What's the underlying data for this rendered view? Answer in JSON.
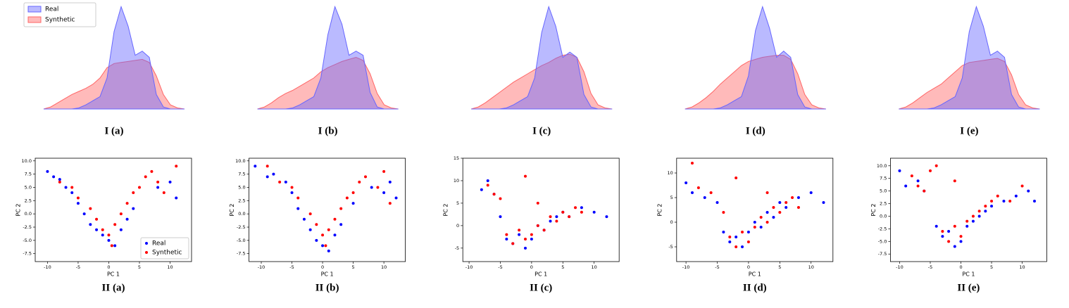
{
  "chart_data": [
    {
      "type": "kde",
      "caption": "I (a)",
      "legend": "upper left",
      "x": [
        0,
        1,
        2,
        3,
        4,
        5,
        6,
        7,
        8,
        9,
        10,
        11,
        12,
        13,
        14,
        15,
        16,
        17,
        18,
        19,
        20
      ],
      "xlim": [
        0,
        20
      ],
      "ylim": [
        0,
        1
      ],
      "series": [
        {
          "name": "Real",
          "color": "#6666ff",
          "values": [
            0,
            0,
            0,
            0,
            0,
            0.01,
            0.04,
            0.08,
            0.12,
            0.3,
            0.75,
            0.99,
            0.8,
            0.52,
            0.56,
            0.5,
            0.14,
            0.02,
            0,
            0,
            0
          ]
        },
        {
          "name": "Synthetic",
          "color": "#ff6666",
          "values": [
            0,
            0.02,
            0.06,
            0.1,
            0.14,
            0.17,
            0.2,
            0.24,
            0.3,
            0.4,
            0.44,
            0.45,
            0.46,
            0.47,
            0.48,
            0.45,
            0.32,
            0.14,
            0.04,
            0.01,
            0
          ]
        }
      ]
    },
    {
      "type": "kde",
      "caption": "I (b)",
      "x": [
        0,
        1,
        2,
        3,
        4,
        5,
        6,
        7,
        8,
        9,
        10,
        11,
        12,
        13,
        14,
        15,
        16,
        17,
        18,
        19,
        20
      ],
      "xlim": [
        0,
        20
      ],
      "ylim": [
        0,
        1
      ],
      "series": [
        {
          "color": "#6666ff",
          "values": [
            0,
            0,
            0,
            0,
            0,
            0.01,
            0.04,
            0.08,
            0.12,
            0.3,
            0.72,
            0.99,
            0.82,
            0.52,
            0.56,
            0.52,
            0.16,
            0.02,
            0,
            0,
            0
          ]
        },
        {
          "color": "#ff6666",
          "values": [
            0,
            0.02,
            0.06,
            0.11,
            0.15,
            0.18,
            0.22,
            0.26,
            0.3,
            0.36,
            0.4,
            0.43,
            0.46,
            0.48,
            0.5,
            0.47,
            0.34,
            0.15,
            0.04,
            0.01,
            0
          ]
        }
      ]
    },
    {
      "type": "kde",
      "caption": "I (c)",
      "x": [
        0,
        1,
        2,
        3,
        4,
        5,
        6,
        7,
        8,
        9,
        10,
        11,
        12,
        13,
        14,
        15,
        16,
        17,
        18,
        19,
        20
      ],
      "xlim": [
        0,
        20
      ],
      "ylim": [
        0,
        1
      ],
      "series": [
        {
          "color": "#6666ff",
          "values": [
            0,
            0,
            0,
            0,
            0,
            0.01,
            0.04,
            0.08,
            0.12,
            0.3,
            0.74,
            0.99,
            0.8,
            0.5,
            0.55,
            0.5,
            0.14,
            0.02,
            0,
            0,
            0
          ]
        },
        {
          "color": "#ff6666",
          "values": [
            0,
            0.02,
            0.06,
            0.11,
            0.16,
            0.21,
            0.26,
            0.3,
            0.34,
            0.38,
            0.42,
            0.45,
            0.49,
            0.52,
            0.53,
            0.5,
            0.36,
            0.15,
            0.04,
            0.01,
            0
          ]
        }
      ]
    },
    {
      "type": "kde",
      "caption": "I (d)",
      "x": [
        0,
        1,
        2,
        3,
        4,
        5,
        6,
        7,
        8,
        9,
        10,
        11,
        12,
        13,
        14,
        15,
        16,
        17,
        18,
        19,
        20
      ],
      "xlim": [
        0,
        20
      ],
      "ylim": [
        0,
        1
      ],
      "series": [
        {
          "color": "#6666ff",
          "values": [
            0,
            0,
            0,
            0,
            0,
            0.01,
            0.04,
            0.08,
            0.12,
            0.32,
            0.76,
            0.99,
            0.78,
            0.5,
            0.56,
            0.5,
            0.14,
            0.02,
            0,
            0,
            0
          ]
        },
        {
          "color": "#ff6666",
          "values": [
            0,
            0.02,
            0.06,
            0.11,
            0.17,
            0.24,
            0.3,
            0.36,
            0.42,
            0.46,
            0.48,
            0.5,
            0.51,
            0.52,
            0.52,
            0.48,
            0.34,
            0.14,
            0.04,
            0.01,
            0
          ]
        }
      ]
    },
    {
      "type": "kde",
      "caption": "I (e)",
      "x": [
        0,
        1,
        2,
        3,
        4,
        5,
        6,
        7,
        8,
        9,
        10,
        11,
        12,
        13,
        14,
        15,
        16,
        17,
        18,
        19,
        20
      ],
      "xlim": [
        0,
        20
      ],
      "ylim": [
        0,
        1
      ],
      "series": [
        {
          "color": "#6666ff",
          "values": [
            0,
            0,
            0,
            0,
            0,
            0.01,
            0.04,
            0.08,
            0.12,
            0.3,
            0.75,
            0.99,
            0.8,
            0.52,
            0.56,
            0.5,
            0.14,
            0.02,
            0,
            0,
            0
          ]
        },
        {
          "color": "#ff6666",
          "values": [
            0,
            0.02,
            0.06,
            0.11,
            0.16,
            0.2,
            0.24,
            0.3,
            0.36,
            0.42,
            0.45,
            0.46,
            0.47,
            0.48,
            0.49,
            0.46,
            0.33,
            0.14,
            0.04,
            0.01,
            0
          ]
        }
      ]
    },
    {
      "type": "scatter",
      "caption": "II (a)",
      "xlabel": "PC 1",
      "ylabel": "PC 2",
      "legend": "lower right",
      "xlim": [
        -12,
        13.5
      ],
      "ylim": [
        -9,
        10.5
      ],
      "xticks": [
        -10,
        -5,
        0,
        5,
        10
      ],
      "yticks": [
        {
          "value": -7.5,
          "label": "-7.5"
        },
        {
          "value": -5,
          "label": "-5.0"
        },
        {
          "value": -2.5,
          "label": "-2.5"
        },
        {
          "value": 0,
          "label": "0.0"
        },
        {
          "value": 2.5,
          "label": "2.5"
        },
        {
          "value": 5,
          "label": "5.0"
        },
        {
          "value": 7.5,
          "label": "7.5"
        },
        {
          "value": 10,
          "label": "10.0"
        }
      ],
      "series": [
        {
          "name": "Real",
          "color": "#0000ff",
          "x": [
            -10,
            -9,
            -8,
            -7,
            -6,
            -5,
            -4,
            -3,
            -2,
            -1,
            0,
            1,
            2,
            3,
            4,
            8,
            10,
            11
          ],
          "y": [
            8,
            7,
            6.5,
            5,
            4,
            2,
            0,
            -2,
            -3,
            -4,
            -5,
            -6,
            -3,
            -1,
            1,
            5,
            6,
            3
          ]
        },
        {
          "name": "Synthetic",
          "color": "#ff0000",
          "x": [
            -8,
            -6,
            -5,
            -3,
            -2,
            -1,
            0,
            0.5,
            1,
            2,
            3,
            4,
            5,
            6,
            7,
            8,
            9,
            11
          ],
          "y": [
            6,
            5,
            3,
            1,
            -1,
            -3,
            -4,
            -6,
            -2,
            0,
            2,
            4,
            5,
            7,
            8,
            6,
            4,
            9
          ]
        }
      ]
    },
    {
      "type": "scatter",
      "caption": "II (b)",
      "xlabel": "PC 1",
      "ylabel": "PC 2",
      "xlim": [
        -12,
        13.5
      ],
      "ylim": [
        -9,
        10.5
      ],
      "xticks": [
        -10,
        -5,
        0,
        5,
        10
      ],
      "yticks": [
        {
          "value": -7.5,
          "label": "-7.5"
        },
        {
          "value": -5,
          "label": "-5.0"
        },
        {
          "value": -2.5,
          "label": "-2.5"
        },
        {
          "value": 0,
          "label": "0.0"
        },
        {
          "value": 2.5,
          "label": "2.5"
        },
        {
          "value": 5,
          "label": "5.0"
        },
        {
          "value": 7.5,
          "label": "7.5"
        },
        {
          "value": 10,
          "label": "10.0"
        }
      ],
      "series": [
        {
          "color": "#0000ff",
          "x": [
            -11,
            -9,
            -8,
            -6,
            -5,
            -4,
            -3,
            -2,
            -1,
            0,
            1,
            2,
            3,
            5,
            8,
            10,
            11,
            12
          ],
          "y": [
            9,
            7,
            7.5,
            6,
            4,
            1,
            -1,
            -3,
            -5,
            -6,
            -7,
            -4,
            -2,
            2,
            5,
            4,
            6,
            3
          ]
        },
        {
          "color": "#ff0000",
          "x": [
            -9,
            -7,
            -5,
            -4,
            -2,
            -1,
            0,
            0.5,
            1,
            2,
            3,
            4,
            5,
            6,
            7,
            9,
            10,
            11
          ],
          "y": [
            9,
            6,
            5,
            3,
            0,
            -2,
            -4,
            -6,
            -3,
            -1,
            1,
            3,
            4,
            6,
            7,
            5,
            8,
            2
          ]
        }
      ]
    },
    {
      "type": "scatter",
      "caption": "II (c)",
      "xlabel": "PC 1",
      "ylabel": "PC 2",
      "xlim": [
        -11,
        14
      ],
      "ylim": [
        -8,
        15
      ],
      "xticks": [
        -10,
        -5,
        0,
        5,
        10
      ],
      "yticks": [
        -5,
        0,
        5,
        10,
        15
      ],
      "series": [
        {
          "color": "#0000ff",
          "x": [
            -8,
            -7,
            -6,
            -5,
            -4,
            -3,
            -2,
            -1,
            0,
            1,
            2,
            3,
            4,
            5,
            6,
            8,
            10,
            12
          ],
          "y": [
            8,
            10,
            7,
            2,
            -3,
            -4,
            -2,
            -5,
            -3,
            0,
            -1,
            1,
            2,
            3,
            2,
            4,
            3,
            2
          ]
        },
        {
          "color": "#ff0000",
          "x": [
            -7,
            -6,
            -5,
            -4,
            -3,
            -2,
            -1,
            0,
            1,
            2,
            3,
            4,
            5,
            6,
            7,
            8,
            -1,
            1
          ],
          "y": [
            9,
            7,
            6,
            -2,
            -4,
            -1,
            -3,
            -2,
            0,
            -1,
            2,
            1,
            3,
            2,
            4,
            3,
            11,
            5
          ]
        }
      ]
    },
    {
      "type": "scatter",
      "caption": "II (d)",
      "xlabel": "PC 1",
      "ylabel": "PC 2",
      "xlim": [
        -11.5,
        13.5
      ],
      "ylim": [
        -8,
        13
      ],
      "xticks": [
        -10,
        -5,
        0,
        5,
        10
      ],
      "yticks": [
        -5,
        0,
        5,
        10
      ],
      "series": [
        {
          "color": "#0000ff",
          "x": [
            -10,
            -9,
            -7,
            -5,
            -4,
            -3,
            -2,
            -1,
            0,
            1,
            2,
            3,
            4,
            5,
            6,
            8,
            10,
            12
          ],
          "y": [
            8,
            6,
            5,
            4,
            -2,
            -4,
            -3,
            -5,
            -2,
            0,
            -1,
            2,
            1,
            4,
            3,
            5,
            6,
            4
          ]
        },
        {
          "color": "#ff0000",
          "x": [
            -9,
            -8,
            -6,
            -4,
            -3,
            -2,
            -1,
            0,
            1,
            2,
            3,
            4,
            5,
            6,
            7,
            8,
            -2,
            3
          ],
          "y": [
            12,
            7,
            6,
            2,
            -3,
            -5,
            -2,
            -4,
            -1,
            1,
            0,
            3,
            2,
            4,
            5,
            3,
            9,
            6
          ]
        }
      ]
    },
    {
      "type": "scatter",
      "caption": "II (e)",
      "xlabel": "PC 1",
      "ylabel": "PC 2",
      "xlim": [
        -11.5,
        14
      ],
      "ylim": [
        -9,
        11.5
      ],
      "xticks": [
        -10,
        -5,
        0,
        5,
        10
      ],
      "yticks": [
        {
          "value": -7.5,
          "label": "-7.5"
        },
        {
          "value": -5,
          "label": "-5.0"
        },
        {
          "value": -2.5,
          "label": "-2.5"
        },
        {
          "value": 0,
          "label": "0.0"
        },
        {
          "value": 2.5,
          "label": "2.5"
        },
        {
          "value": 5,
          "label": "5.0"
        },
        {
          "value": 7.5,
          "label": "7.5"
        },
        {
          "value": 10,
          "label": "10.0"
        }
      ],
      "series": [
        {
          "color": "#0000ff",
          "x": [
            -10,
            -9,
            -7,
            -6,
            -4,
            -3,
            -2,
            -1,
            0,
            1,
            2,
            3,
            4,
            5,
            7,
            9,
            11,
            12
          ],
          "y": [
            9,
            6,
            7,
            5,
            -2,
            -4,
            -3,
            -6,
            -5,
            -2,
            -1,
            0,
            1,
            2,
            3,
            4,
            5,
            3
          ]
        },
        {
          "color": "#ff0000",
          "x": [
            -8,
            -7,
            -6,
            -5,
            -3,
            -2,
            -1,
            0,
            1,
            2,
            3,
            4,
            5,
            6,
            8,
            -4,
            -1,
            10
          ],
          "y": [
            8,
            6,
            5,
            9,
            -3,
            -5,
            -2,
            -4,
            -1,
            0,
            1,
            2,
            3,
            4,
            3,
            10,
            7,
            6
          ]
        }
      ]
    }
  ]
}
